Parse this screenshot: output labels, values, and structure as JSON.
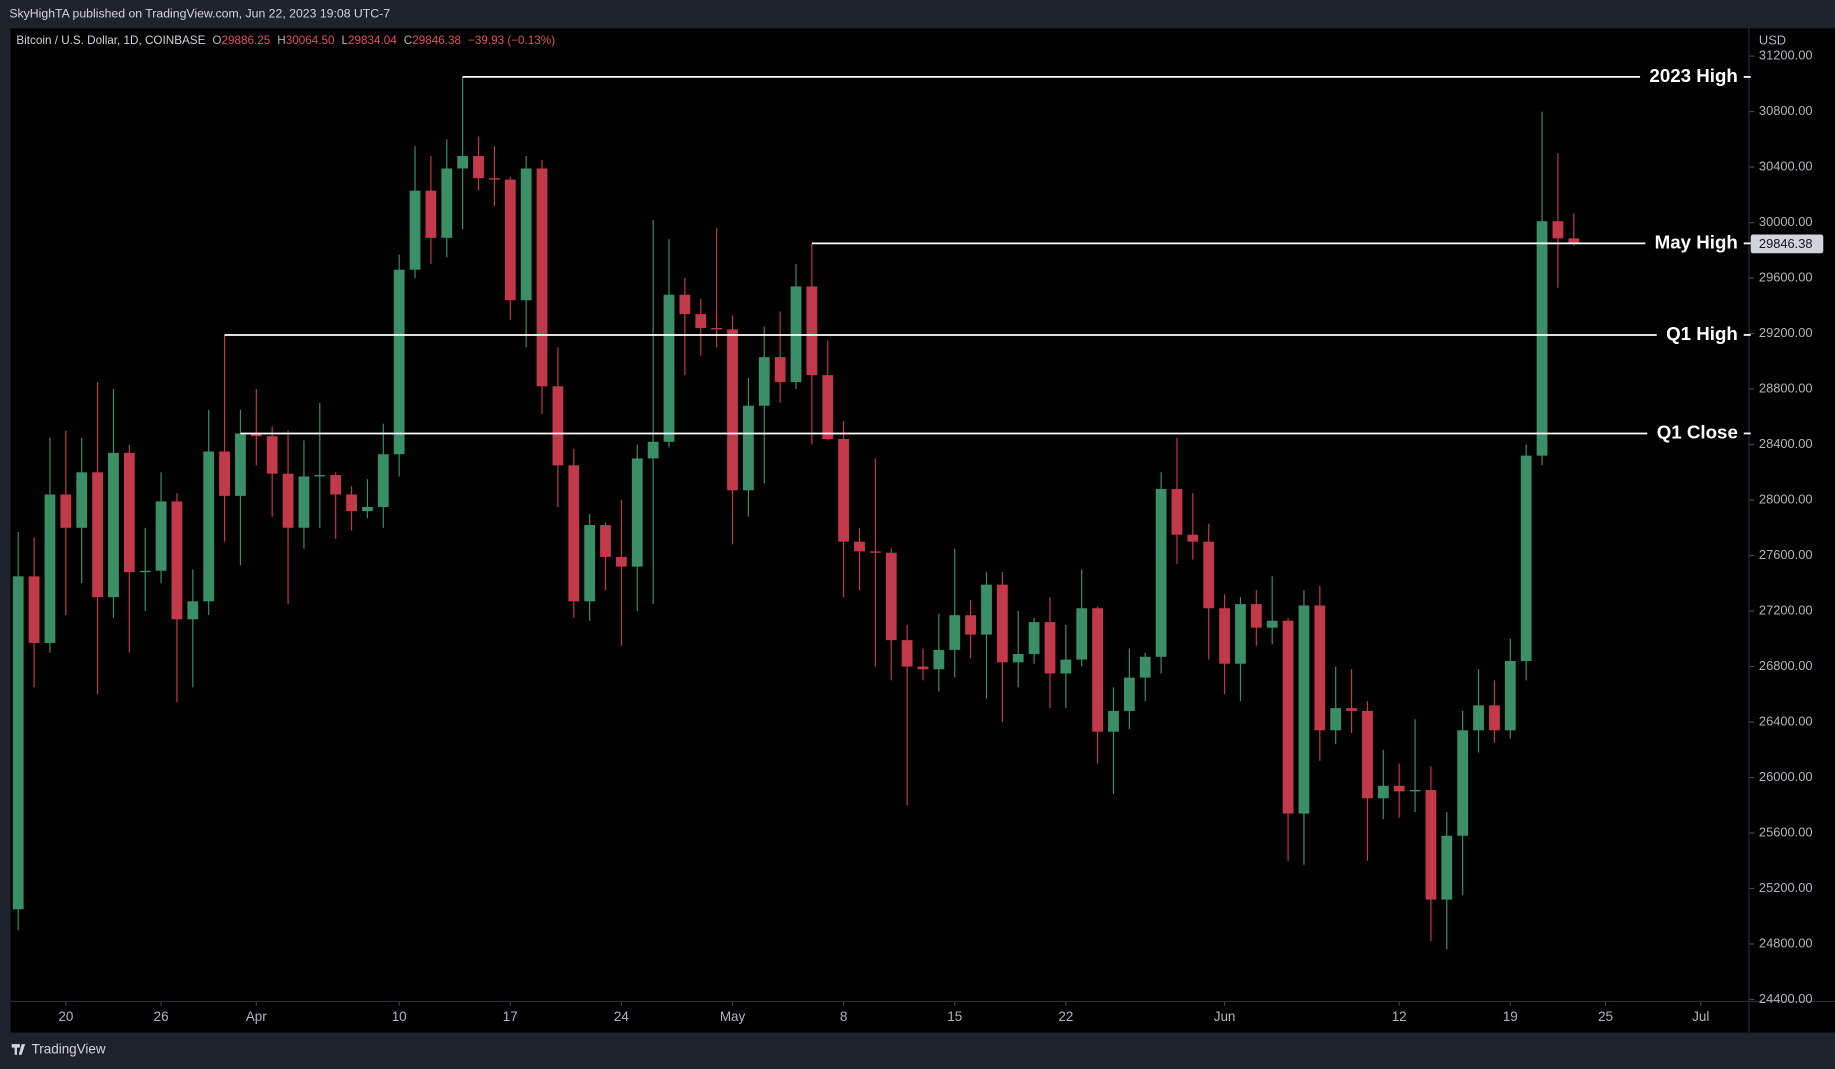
{
  "header": "SkyHighTA published on TradingView.com, Jun 22, 2023 19:08 UTC-7",
  "footer": "TradingView",
  "chart_data": {
    "type": "candlestick",
    "legend": {
      "name": "Bitcoin / U.S. Dollar, 1D, COINBASE",
      "items": [
        {
          "label": "O",
          "text": "29886.25"
        },
        {
          "label": "H",
          "text": "30064.50"
        },
        {
          "label": "L",
          "text": "29834.04"
        },
        {
          "label": "C",
          "text": "29846.38"
        }
      ],
      "change": "−39.93 (−0.13%)"
    },
    "y_unit": "USD",
    "up_color": "#3b8f67",
    "down_color": "#c23a4a",
    "x": [
      "03-17",
      "03-18",
      "03-19",
      "03-20",
      "03-21",
      "03-22",
      "03-23",
      "03-24",
      "03-25",
      "03-26",
      "03-27",
      "03-28",
      "03-29",
      "03-30",
      "03-31",
      "04-01",
      "04-02",
      "04-03",
      "04-04",
      "04-05",
      "04-06",
      "04-07",
      "04-08",
      "04-09",
      "04-10",
      "04-11",
      "04-12",
      "04-13",
      "04-14",
      "04-15",
      "04-16",
      "04-17",
      "04-18",
      "04-19",
      "04-20",
      "04-21",
      "04-22",
      "04-23",
      "04-24",
      "04-25",
      "04-26",
      "04-27",
      "04-28",
      "04-29",
      "04-30",
      "05-01",
      "05-02",
      "05-03",
      "05-04",
      "05-05",
      "05-06",
      "05-07",
      "05-08",
      "05-09",
      "05-10",
      "05-11",
      "05-12",
      "05-13",
      "05-14",
      "05-15",
      "05-16",
      "05-17",
      "05-18",
      "05-19",
      "05-20",
      "05-21",
      "05-22",
      "05-23",
      "05-24",
      "05-25",
      "05-26",
      "05-27",
      "05-28",
      "05-29",
      "05-30",
      "05-31",
      "06-01",
      "06-02",
      "06-03",
      "06-04",
      "06-05",
      "06-06",
      "06-07",
      "06-08",
      "06-09",
      "06-10",
      "06-11",
      "06-12",
      "06-13",
      "06-14",
      "06-15",
      "06-16",
      "06-17",
      "06-18",
      "06-19",
      "06-20",
      "06-21",
      "06-22",
      "06-23"
    ],
    "open": [
      25050,
      27450,
      26970,
      28040,
      27800,
      28200,
      27300,
      28340,
      27480,
      27490,
      27990,
      27140,
      27270,
      28350,
      28030,
      28480,
      28460,
      28190,
      27800,
      28170,
      28180,
      28040,
      27920,
      27950,
      28330,
      29660,
      30230,
      29890,
      30390,
      30480,
      30320,
      30310,
      29440,
      30390,
      28820,
      28250,
      27270,
      27820,
      27590,
      27520,
      28300,
      28420,
      29480,
      29340,
      29240,
      29230,
      28070,
      28680,
      29030,
      28850,
      29540,
      28900,
      28440,
      27700,
      27630,
      27620,
      26990,
      26800,
      26780,
      26920,
      27170,
      27030,
      27390,
      26830,
      26890,
      27120,
      26750,
      26850,
      27220,
      26330,
      26480,
      26720,
      26870,
      28080,
      27750,
      27700,
      27220,
      26820,
      27250,
      27080,
      27130,
      25740,
      27240,
      26340,
      26500,
      26480,
      25850,
      25940,
      25900,
      25910,
      25120,
      25580,
      26340,
      26520,
      26340,
      26840,
      28320,
      30010,
      29886.25
    ],
    "high": [
      27770,
      27730,
      28450,
      28500,
      28450,
      28850,
      28800,
      28400,
      27800,
      28200,
      28050,
      27500,
      28650,
      29190,
      28650,
      28800,
      28530,
      28500,
      28430,
      28700,
      28200,
      28100,
      28150,
      28550,
      29770,
      30550,
      30480,
      30600,
      31050,
      30620,
      30550,
      30330,
      30480,
      30450,
      29100,
      28370,
      27900,
      27840,
      28000,
      28400,
      30020,
      29880,
      29600,
      29450,
      29960,
      29330,
      28880,
      29250,
      29360,
      29700,
      29850,
      29150,
      28570,
      27800,
      28300,
      27650,
      27100,
      26930,
      27180,
      27650,
      27280,
      27480,
      27480,
      27200,
      27150,
      27300,
      27100,
      27500,
      27230,
      26650,
      26930,
      26900,
      28200,
      28450,
      28050,
      27830,
      27320,
      27300,
      27350,
      27450,
      27150,
      27350,
      27380,
      26800,
      26780,
      26550,
      26200,
      26100,
      26420,
      26080,
      25750,
      26480,
      26780,
      26700,
      27000,
      28400,
      30800,
      30500,
      30064.5
    ],
    "low": [
      24900,
      26650,
      26900,
      27170,
      27400,
      26600,
      27150,
      26900,
      27200,
      27400,
      26540,
      26650,
      27170,
      27700,
      27530,
      28250,
      27880,
      27250,
      27650,
      27800,
      27720,
      27780,
      27870,
      27800,
      28170,
      29600,
      29700,
      29750,
      29950,
      30230,
      30120,
      29300,
      29100,
      28620,
      27950,
      27150,
      27130,
      27350,
      26950,
      27200,
      27250,
      28380,
      28900,
      29040,
      29100,
      27680,
      27880,
      28120,
      28700,
      28800,
      28400,
      28430,
      27300,
      27350,
      26800,
      26700,
      25800,
      26700,
      26620,
      26720,
      26860,
      26570,
      26400,
      26650,
      26820,
      26500,
      26500,
      26800,
      26100,
      25880,
      26350,
      26550,
      26750,
      27540,
      27570,
      26850,
      26600,
      26550,
      26950,
      26960,
      25400,
      25370,
      26120,
      26240,
      26320,
      25400,
      25700,
      25710,
      25750,
      24820,
      24760,
      25150,
      26180,
      26250,
      26280,
      26700,
      28250,
      29530,
      29834.04
    ],
    "close": [
      27450,
      26970,
      28040,
      27800,
      28200,
      27300,
      28340,
      27480,
      27490,
      27990,
      27140,
      27270,
      28350,
      28030,
      28480,
      28460,
      28190,
      27800,
      28170,
      28180,
      28040,
      27920,
      27950,
      28330,
      29660,
      30230,
      29890,
      30390,
      30480,
      30320,
      30310,
      29440,
      30390,
      28820,
      28250,
      27270,
      27820,
      27590,
      27520,
      28300,
      28420,
      29480,
      29340,
      29240,
      29230,
      28070,
      28680,
      29030,
      28850,
      29540,
      28900,
      28440,
      27700,
      27630,
      27620,
      26990,
      26800,
      26780,
      26920,
      27170,
      27030,
      27390,
      26830,
      26890,
      27120,
      26750,
      26850,
      27220,
      26330,
      26480,
      26720,
      26870,
      28080,
      27750,
      27700,
      27220,
      26820,
      27250,
      27080,
      27130,
      25740,
      27240,
      26340,
      26500,
      26480,
      25850,
      25940,
      25900,
      25910,
      25120,
      25580,
      26340,
      26520,
      26340,
      26840,
      28320,
      30010,
      29886.25,
      29846.38
    ],
    "xlim": [
      "03-16",
      "07-04"
    ],
    "xticks": [
      {
        "value": "03-20",
        "label": "20"
      },
      {
        "value": "03-26",
        "label": "26"
      },
      {
        "value": "04-01",
        "label": "Apr"
      },
      {
        "value": "04-10",
        "label": "10"
      },
      {
        "value": "04-17",
        "label": "17"
      },
      {
        "value": "04-24",
        "label": "24"
      },
      {
        "value": "05-01",
        "label": "May"
      },
      {
        "value": "05-08",
        "label": "8"
      },
      {
        "value": "05-15",
        "label": "15"
      },
      {
        "value": "05-22",
        "label": "22"
      },
      {
        "value": "06-01",
        "label": "Jun"
      },
      {
        "value": "06-12",
        "label": "12"
      },
      {
        "value": "06-19",
        "label": "19"
      },
      {
        "value": "06-25",
        "label": "25"
      },
      {
        "value": "07-01",
        "label": "Jul"
      }
    ],
    "ylim": [
      24390,
      31400
    ],
    "yticks": [
      {
        "value": 24400,
        "label": "24400.00"
      },
      {
        "value": 24800,
        "label": "24800.00"
      },
      {
        "value": 25200,
        "label": "25200.00"
      },
      {
        "value": 25600,
        "label": "25600.00"
      },
      {
        "value": 26000,
        "label": "26000.00"
      },
      {
        "value": 26400,
        "label": "26400.00"
      },
      {
        "value": 26800,
        "label": "26800.00"
      },
      {
        "value": 27200,
        "label": "27200.00"
      },
      {
        "value": 27600,
        "label": "27600.00"
      },
      {
        "value": 28000,
        "label": "28000.00"
      },
      {
        "value": 28400,
        "label": "28400.00"
      },
      {
        "value": 28800,
        "label": "28800.00"
      },
      {
        "value": 29200,
        "label": "29200.00"
      },
      {
        "value": 29600,
        "label": "29600.00"
      },
      {
        "value": 30000,
        "label": "30000.00"
      },
      {
        "value": 30400,
        "label": "30400.00"
      },
      {
        "value": 30800,
        "label": "30800.00"
      },
      {
        "value": 31200,
        "label": "31200.00"
      }
    ],
    "grid": false,
    "levels": [
      {
        "label": "2023 High",
        "value": 31050,
        "x": "04-14"
      },
      {
        "label": "May High",
        "value": 29850,
        "x": "05-06"
      },
      {
        "label": "Q1 High",
        "value": 29190,
        "x": "03-30"
      },
      {
        "label": "Q1 Close",
        "value": 28480,
        "x": "03-31"
      }
    ],
    "level_color": "#ffffff"
  }
}
